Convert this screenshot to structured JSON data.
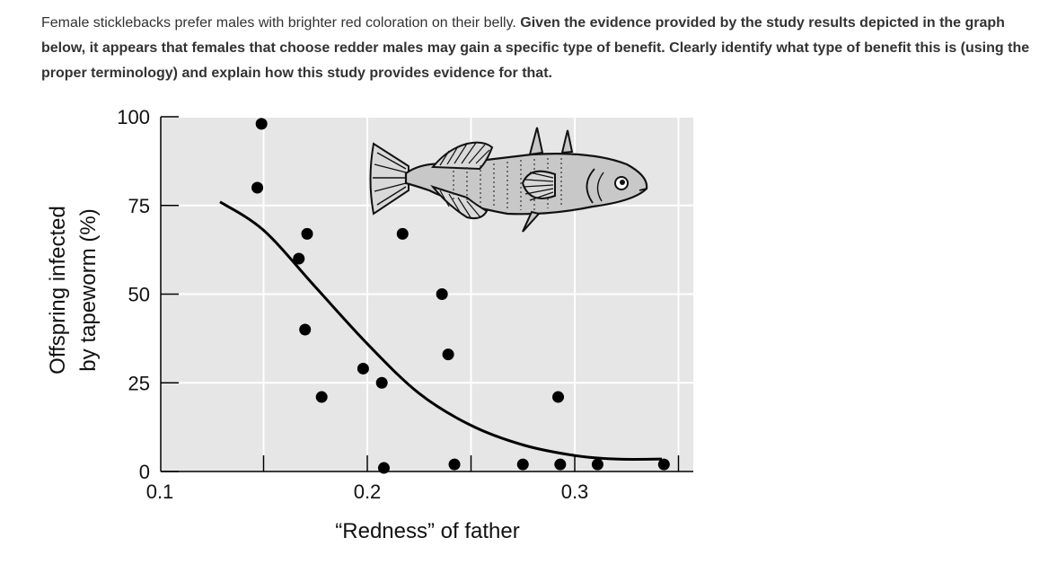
{
  "question": {
    "intro": "Female sticklebacks prefer males with brighter red coloration on their belly.",
    "prompt": "Given the evidence provided by the study results depicted in the graph below, it appears that females that choose redder males may gain a specific type of benefit. Clearly identify what type of benefit this is (using the proper terminology) and explain how this study provides evidence for that."
  },
  "colors": {
    "plot_background": "#e6e6e6",
    "gridline": "#ffffff",
    "points": "#000000",
    "fish_fill": "#c8c8c8"
  },
  "chart_data": {
    "type": "scatter",
    "title": "",
    "xlabel": "“Redness” of father",
    "ylabel_line1": "Offspring infected",
    "ylabel_line2": "by tapeworm (%)",
    "xlim": [
      0.1,
      0.35
    ],
    "ylim": [
      0,
      100
    ],
    "x_ticks": [
      0.1,
      0.2,
      0.3
    ],
    "x_tick_labels": [
      "0.1",
      "0.2",
      "0.3"
    ],
    "x_minor_ticks": [
      0.15,
      0.25,
      0.35
    ],
    "y_ticks": [
      0,
      25,
      50,
      75,
      100
    ],
    "y_tick_labels": [
      "0",
      "25",
      "50",
      "75",
      "100"
    ],
    "grid": "vertical and horizontal at major ticks",
    "points": [
      {
        "x": 0.149,
        "y": 98
      },
      {
        "x": 0.147,
        "y": 80
      },
      {
        "x": 0.167,
        "y": 60
      },
      {
        "x": 0.171,
        "y": 67
      },
      {
        "x": 0.17,
        "y": 40
      },
      {
        "x": 0.178,
        "y": 21
      },
      {
        "x": 0.198,
        "y": 29
      },
      {
        "x": 0.207,
        "y": 25
      },
      {
        "x": 0.208,
        "y": 1
      },
      {
        "x": 0.217,
        "y": 67
      },
      {
        "x": 0.236,
        "y": 50
      },
      {
        "x": 0.239,
        "y": 33
      },
      {
        "x": 0.242,
        "y": 2
      },
      {
        "x": 0.275,
        "y": 2
      },
      {
        "x": 0.292,
        "y": 21
      },
      {
        "x": 0.293,
        "y": 2
      },
      {
        "x": 0.311,
        "y": 2
      },
      {
        "x": 0.343,
        "y": 2
      }
    ],
    "trend_curve": [
      {
        "x": 0.129,
        "y": 76
      },
      {
        "x": 0.15,
        "y": 68
      },
      {
        "x": 0.175,
        "y": 52
      },
      {
        "x": 0.2,
        "y": 36
      },
      {
        "x": 0.225,
        "y": 22
      },
      {
        "x": 0.25,
        "y": 13
      },
      {
        "x": 0.275,
        "y": 7.5
      },
      {
        "x": 0.3,
        "y": 4.5
      },
      {
        "x": 0.32,
        "y": 3.5
      },
      {
        "x": 0.342,
        "y": 3.5
      }
    ]
  }
}
